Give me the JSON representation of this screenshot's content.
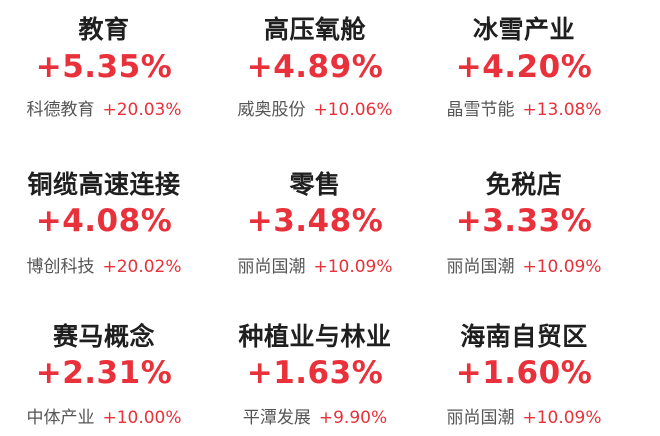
{
  "sectors": [
    {
      "name": "教育",
      "pct": "+5.35%",
      "stock": "科德教育",
      "stock_chg": "+20.03%"
    },
    {
      "name": "高压氧舱",
      "pct": "+4.89%",
      "stock": "威奥股份",
      "stock_chg": "+10.06%"
    },
    {
      "name": "冰雪产业",
      "pct": "+4.20%",
      "stock": "晶雪节能",
      "stock_chg": "+13.08%"
    },
    {
      "name": "铜缆高速连接",
      "pct": "+4.08%",
      "stock": "博创科技",
      "stock_chg": "+20.02%"
    },
    {
      "name": "零售",
      "pct": "+3.48%",
      "stock": "丽尚国潮",
      "stock_chg": "+10.09%"
    },
    {
      "name": "免税店",
      "pct": "+3.33%",
      "stock": "丽尚国潮",
      "stock_chg": "+10.09%"
    },
    {
      "name": "赛马概念",
      "pct": "+2.31%",
      "stock": "中体产业",
      "stock_chg": "+10.00%"
    },
    {
      "name": "种植业与林业",
      "pct": "+1.63%",
      "stock": "平潭发展",
      "stock_chg": "+9.90%"
    },
    {
      "name": "海南自贸区",
      "pct": "+1.60%",
      "stock": "丽尚国潮",
      "stock_chg": "+10.09%"
    }
  ]
}
